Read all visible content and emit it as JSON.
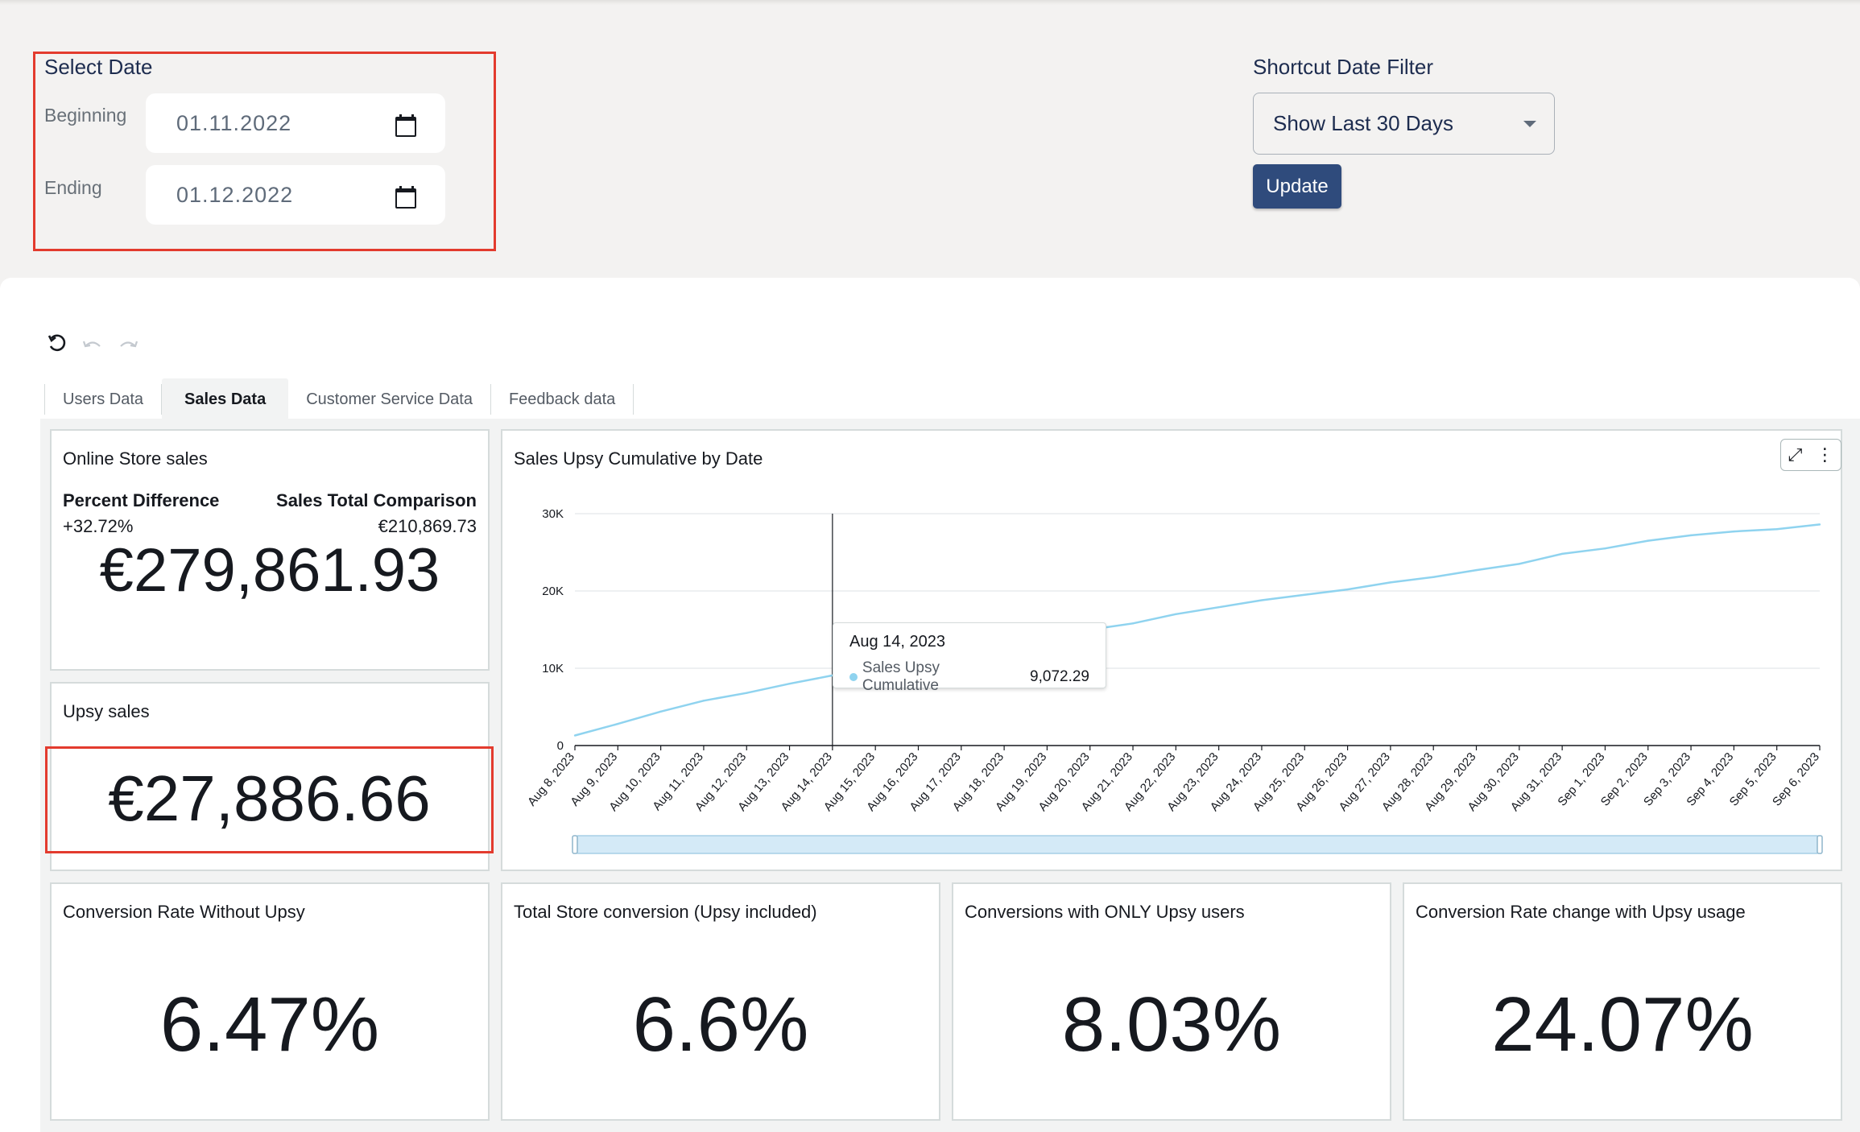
{
  "filters": {
    "select_date_title": "Select Date",
    "beginning_label": "Beginning",
    "beginning_value": "01.11.2022",
    "ending_label": "Ending",
    "ending_value": "01.12.2022",
    "shortcut_title": "Shortcut Date Filter",
    "shortcut_value": "Show Last 30 Days",
    "update_label": "Update"
  },
  "toolbar": {
    "reset_icon": "reset-icon",
    "undo_icon": "undo-icon",
    "redo_icon": "redo-icon"
  },
  "tabs": [
    {
      "label": "Users Data",
      "active": false
    },
    {
      "label": "Sales Data",
      "active": true
    },
    {
      "label": "Customer Service Data",
      "active": false
    },
    {
      "label": "Feedback data",
      "active": false
    }
  ],
  "online_store": {
    "title": "Online Store sales",
    "percent_label": "Percent Difference",
    "percent_value": "+32.72%",
    "comparison_label": "Sales Total Comparison",
    "comparison_value": "€210,869.73",
    "value": "€279,861.93"
  },
  "upsy_sales": {
    "title": "Upsy sales",
    "value": "€27,886.66"
  },
  "kpis": [
    {
      "title": "Conversion Rate Without Upsy",
      "value": "6.47%"
    },
    {
      "title": "Total Store conversion (Upsy included)",
      "value": "6.6%"
    },
    {
      "title": "Conversions with ONLY Upsy users",
      "value": "8.03%"
    },
    {
      "title": "Conversion Rate change with Upsy usage",
      "value": "24.07%"
    }
  ],
  "tooltip": {
    "date": "Aug 14, 2023",
    "series": "Sales Upsy Cumulative",
    "value": "9,072.29"
  },
  "chart_data": {
    "type": "line",
    "title": "Sales Upsy Cumulative by Date",
    "xlabel": "",
    "ylabel": "",
    "ylim": [
      0,
      30000
    ],
    "y_ticks": [
      "0",
      "10K",
      "20K",
      "30K"
    ],
    "y_tick_values": [
      0,
      10000,
      20000,
      30000
    ],
    "grid": true,
    "line_color": "#8fd3ef",
    "categories": [
      "Aug 8, 2023",
      "Aug 9, 2023",
      "Aug 10, 2023",
      "Aug 11, 2023",
      "Aug 12, 2023",
      "Aug 13, 2023",
      "Aug 14, 2023",
      "Aug 15, 2023",
      "Aug 16, 2023",
      "Aug 17, 2023",
      "Aug 18, 2023",
      "Aug 19, 2023",
      "Aug 20, 2023",
      "Aug 21, 2023",
      "Aug 22, 2023",
      "Aug 23, 2023",
      "Aug 24, 2023",
      "Aug 25, 2023",
      "Aug 26, 2023",
      "Aug 27, 2023",
      "Aug 28, 2023",
      "Aug 29, 2023",
      "Aug 30, 2023",
      "Aug 31, 2023",
      "Sep 1, 2023",
      "Sep 2, 2023",
      "Sep 3, 2023",
      "Sep 4, 2023",
      "Sep 5, 2023",
      "Sep 6, 2023"
    ],
    "series": [
      {
        "name": "Sales Upsy Cumulative",
        "values": [
          1300,
          2800,
          4400,
          5800,
          6800,
          8000,
          9072,
          10300,
          11600,
          12800,
          13800,
          14400,
          15000,
          15800,
          17000,
          17900,
          18800,
          19500,
          20200,
          21100,
          21800,
          22700,
          23500,
          24800,
          25500,
          26500,
          27200,
          27700,
          28000,
          28600
        ]
      }
    ]
  }
}
